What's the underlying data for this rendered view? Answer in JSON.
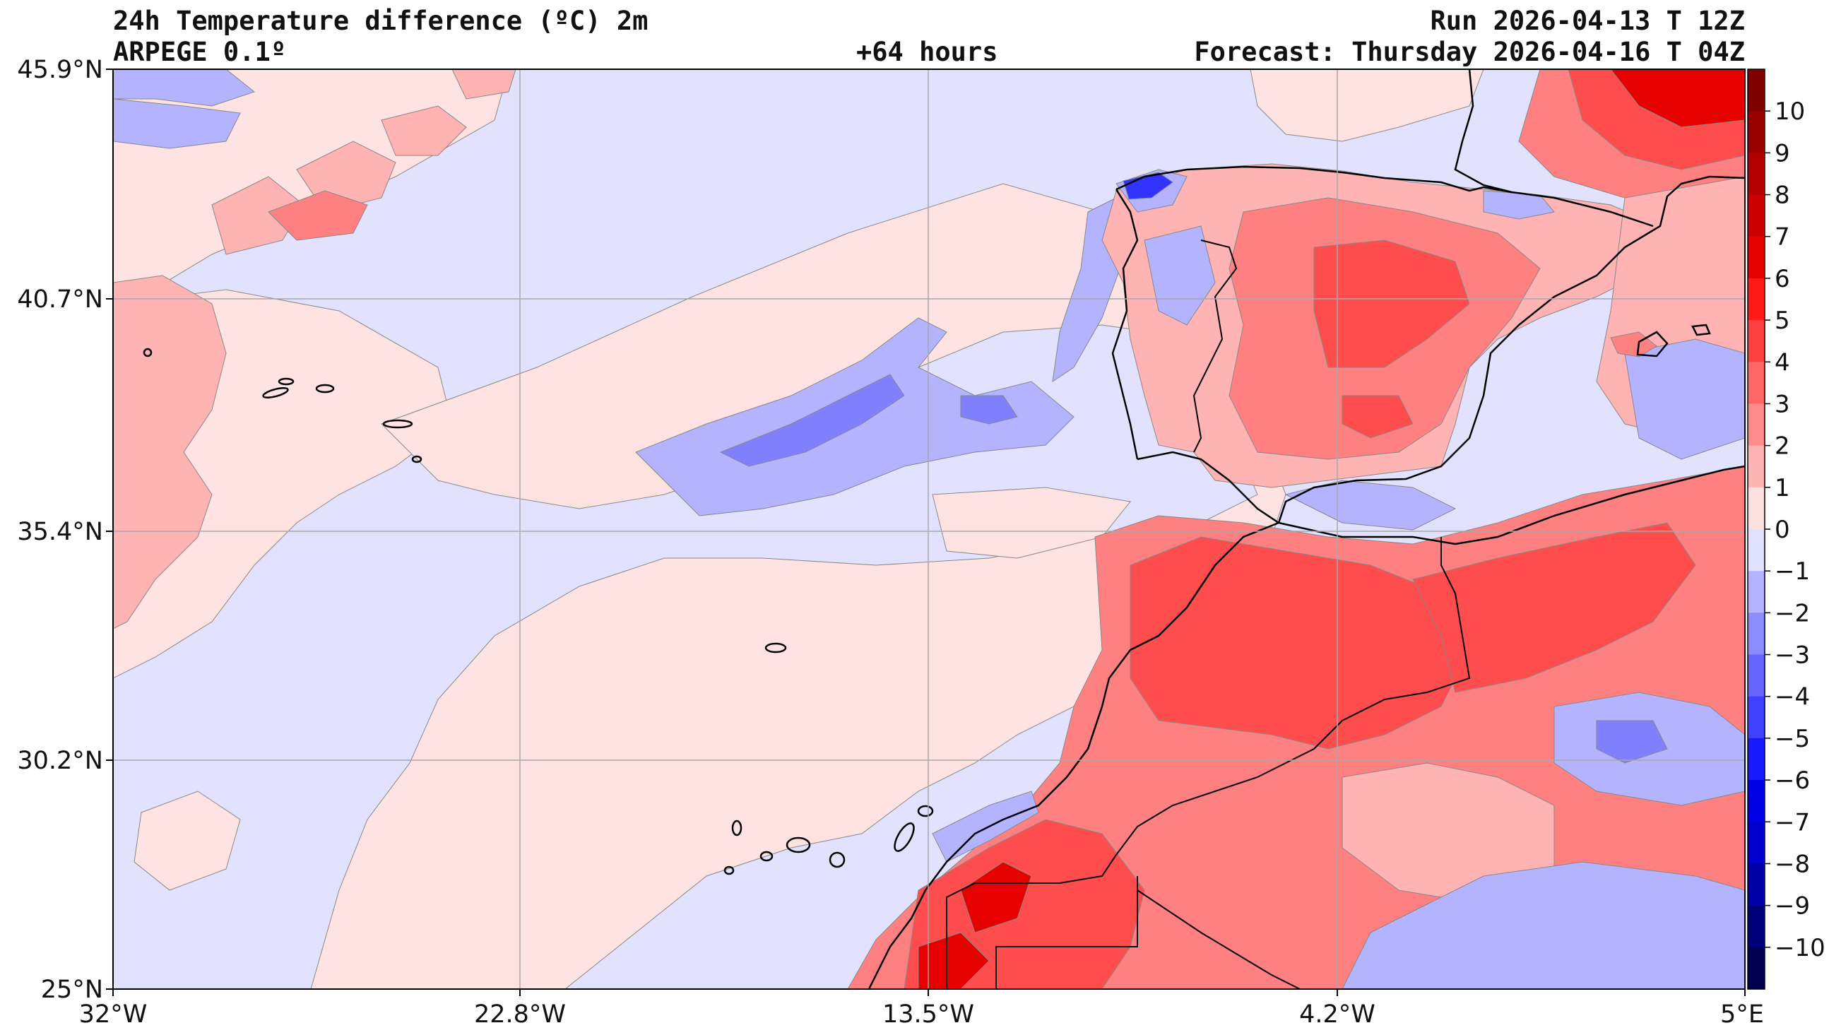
{
  "header": {
    "title_left": "24h Temperature difference (ºC) 2m",
    "model": "ARPEGE 0.1º",
    "lead_time": "+64 hours",
    "run": "Run 2026-04-13 T 12Z",
    "forecast": "Forecast: Thursday 2026-04-16 T 04Z"
  },
  "axes": {
    "lat_ticks": [
      "45.9°N",
      "40.7°N",
      "35.4°N",
      "30.2°N",
      "25°N"
    ],
    "lon_ticks": [
      "32°W",
      "22.8°W",
      "13.5°W",
      "4.2°W",
      "5°E"
    ]
  },
  "colorbar": {
    "levels": [
      "10",
      "9",
      "8",
      "7",
      "6",
      "5",
      "4",
      "3",
      "2",
      "1",
      "0",
      "−1",
      "−2",
      "−3",
      "−4",
      "−5",
      "−6",
      "−7",
      "−8",
      "−9",
      "−10"
    ],
    "colors": [
      "#800000",
      "#990000",
      "#b30000",
      "#cc0000",
      "#e60000",
      "#ff1a1a",
      "#ff4040",
      "#ff6666",
      "#ff8c8c",
      "#ffb3b3",
      "#ffe0e0",
      "#e0e0ff",
      "#b3b3ff",
      "#8c8cff",
      "#6666ff",
      "#4040ff",
      "#1a1aff",
      "#0000e6",
      "#0000cc",
      "#0000a6",
      "#00007a",
      "#000050"
    ]
  },
  "map_colors": {
    "ocean_neg": "#e2e2ff",
    "ocean_pos": "#ffe2e2",
    "light_red": "#ffb3b3",
    "mid_red": "#ff8080",
    "red": "#ff4d4d",
    "deep_red": "#e60000",
    "light_blue": "#b3b3ff",
    "blue": "#8080ff",
    "deep_blue": "#3333ff"
  }
}
